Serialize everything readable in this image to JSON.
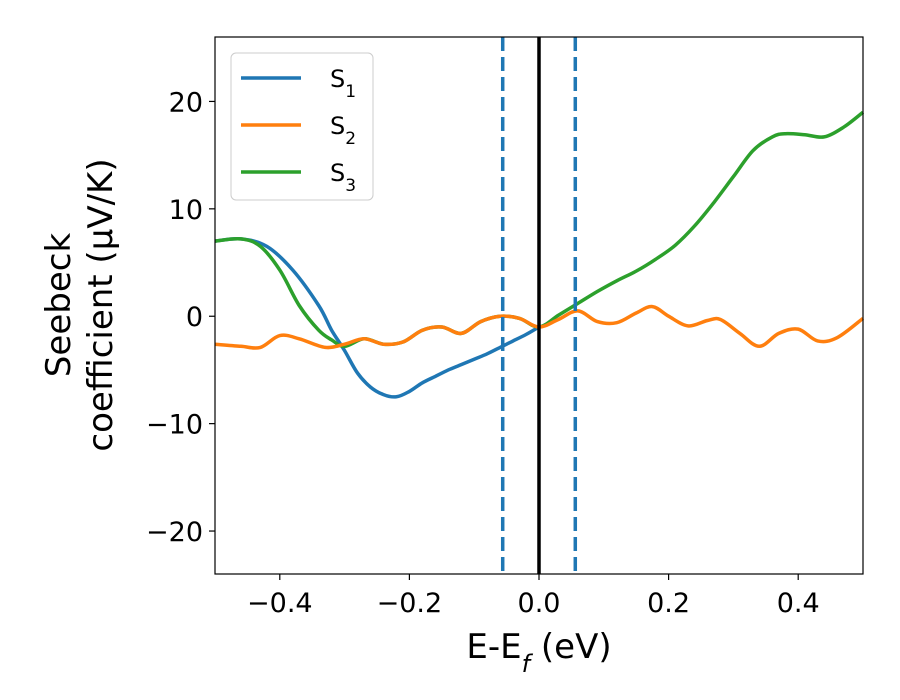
{
  "chart_data": {
    "type": "line",
    "title": "",
    "xlabel": "E-E_f (eV)",
    "xlabel_parts": {
      "base": "E-E",
      "sub": "f",
      "unit": " (eV)"
    },
    "ylabel": "Seebeck coefficient (μV/K)",
    "ylabel_lines": [
      "Seebeck",
      "coefficient  (μV/K)"
    ],
    "xlim": [
      -0.5,
      0.5
    ],
    "ylim": [
      -24,
      26
    ],
    "xticks": [
      -0.4,
      -0.2,
      0.0,
      0.2,
      0.4
    ],
    "xtick_labels": [
      "−0.4",
      "−0.2",
      "0.0",
      "0.2",
      "0.4"
    ],
    "yticks": [
      -20,
      -10,
      0,
      10,
      20
    ],
    "ytick_labels": [
      "−20",
      "−10",
      "0",
      "10",
      "20"
    ],
    "grid": false,
    "legend_position": "top-left",
    "series": [
      {
        "name": "S1",
        "label_base": "S",
        "label_sub": "1",
        "color": "#1f77b4",
        "x": [
          -0.5,
          -0.46,
          -0.42,
          -0.38,
          -0.34,
          -0.32,
          -0.3,
          -0.28,
          -0.26,
          -0.24,
          -0.22,
          -0.2,
          -0.18,
          -0.16,
          -0.14,
          -0.12,
          -0.1,
          -0.08,
          -0.06,
          -0.04,
          -0.02,
          0.0
        ],
        "y": [
          7.0,
          7.2,
          6.5,
          4.3,
          1.0,
          -1.3,
          -3.2,
          -5.3,
          -6.6,
          -7.3,
          -7.5,
          -7.0,
          -6.2,
          -5.6,
          -5.0,
          -4.5,
          -4.0,
          -3.5,
          -2.9,
          -2.3,
          -1.7,
          -1.0
        ]
      },
      {
        "name": "S2",
        "label_base": "S",
        "label_sub": "2",
        "color": "#ff7f0e",
        "x": [
          -0.5,
          -0.46,
          -0.43,
          -0.4,
          -0.37,
          -0.33,
          -0.3,
          -0.27,
          -0.24,
          -0.21,
          -0.18,
          -0.15,
          -0.12,
          -0.09,
          -0.06,
          -0.03,
          0.0,
          0.03,
          0.06,
          0.09,
          0.12,
          0.15,
          0.175,
          0.2,
          0.23,
          0.26,
          0.28,
          0.31,
          0.34,
          0.37,
          0.4,
          0.43,
          0.46,
          0.5
        ],
        "y": [
          -2.6,
          -2.8,
          -2.9,
          -1.8,
          -2.1,
          -2.9,
          -2.6,
          -2.1,
          -2.6,
          -2.4,
          -1.3,
          -1.0,
          -1.6,
          -0.5,
          0.0,
          -0.2,
          -1.0,
          -0.3,
          0.5,
          -0.5,
          -0.6,
          0.3,
          0.9,
          0.0,
          -0.9,
          -0.4,
          -0.3,
          -1.6,
          -2.8,
          -1.6,
          -1.2,
          -2.3,
          -2.0,
          -0.2
        ]
      },
      {
        "name": "S3",
        "label_base": "S",
        "label_sub": "3",
        "color": "#2ca02c",
        "x": [
          -0.5,
          -0.46,
          -0.43,
          -0.4,
          -0.37,
          -0.34,
          -0.32,
          -0.3,
          -0.27,
          -0.24,
          -0.21,
          -0.18,
          -0.15,
          -0.12,
          -0.09,
          -0.06,
          -0.03,
          0.0,
          0.03,
          0.06,
          0.09,
          0.12,
          0.15,
          0.18,
          0.21,
          0.24,
          0.27,
          0.3,
          0.33,
          0.36,
          0.38,
          0.41,
          0.44,
          0.47,
          0.5
        ],
        "y": [
          7.0,
          7.2,
          6.5,
          4.3,
          1.0,
          -1.3,
          -2.2,
          -2.8,
          -2.1,
          -2.6,
          -2.4,
          -1.3,
          -1.0,
          -1.6,
          -0.5,
          0.0,
          -0.2,
          -1.0,
          0.1,
          1.2,
          2.3,
          3.3,
          4.2,
          5.3,
          6.6,
          8.4,
          10.6,
          13.0,
          15.4,
          16.7,
          17.0,
          16.9,
          16.7,
          17.6,
          19.0
        ]
      }
    ],
    "vertical_lines": [
      {
        "x": 0.0,
        "style": "solid",
        "color": "#000000"
      },
      {
        "x": -0.056,
        "style": "dashed",
        "color": "#1f77b4"
      },
      {
        "x": 0.056,
        "style": "dashed",
        "color": "#1f77b4"
      }
    ]
  }
}
